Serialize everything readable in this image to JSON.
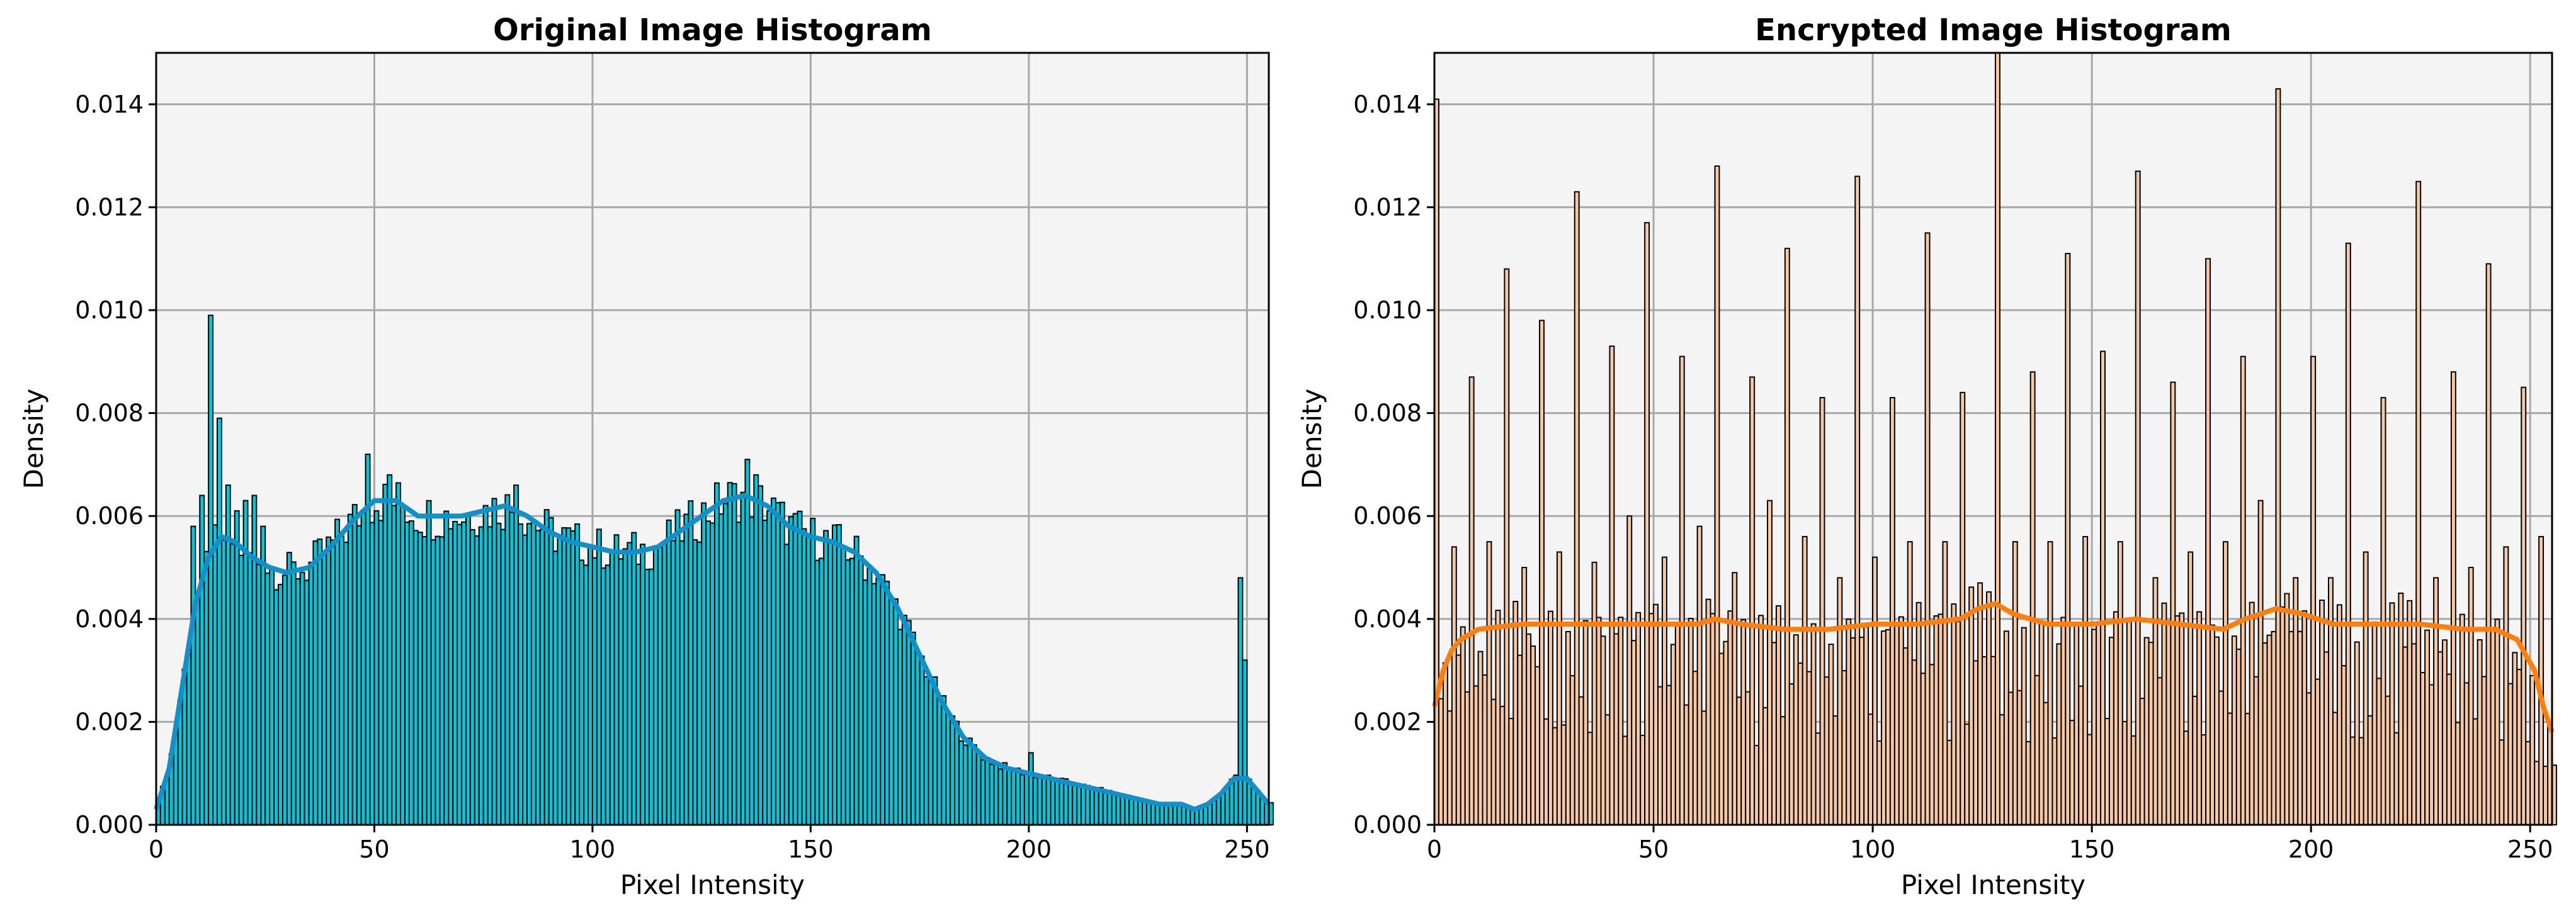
{
  "chart_data": [
    {
      "type": "bar",
      "title": "Original Image Histogram",
      "xlabel": "Pixel Intensity",
      "ylabel": "Density",
      "xlim": [
        0,
        255
      ],
      "ylim": [
        0,
        0.015
      ],
      "xticks": [
        "0",
        "50",
        "100",
        "150",
        "200",
        "250"
      ],
      "yticks": [
        "0.000",
        "0.002",
        "0.004",
        "0.006",
        "0.008",
        "0.010",
        "0.012",
        "0.014"
      ],
      "grid": true,
      "bar_color": "#00c8dc",
      "kde_color": "#1291c8",
      "kde_x": [
        0,
        3,
        6,
        9,
        12,
        15,
        18,
        22,
        26,
        30,
        35,
        40,
        45,
        50,
        55,
        60,
        65,
        70,
        75,
        80,
        85,
        90,
        95,
        100,
        105,
        110,
        115,
        120,
        125,
        130,
        135,
        140,
        145,
        150,
        155,
        160,
        165,
        170,
        175,
        180,
        185,
        190,
        195,
        200,
        205,
        210,
        215,
        220,
        225,
        230,
        235,
        238,
        241,
        244,
        247,
        250,
        253,
        255
      ],
      "kde_y": [
        0.0003,
        0.0011,
        0.0027,
        0.0043,
        0.0052,
        0.0056,
        0.0055,
        0.0052,
        0.005,
        0.0049,
        0.005,
        0.0054,
        0.0059,
        0.0063,
        0.0063,
        0.006,
        0.006,
        0.006,
        0.0061,
        0.0062,
        0.006,
        0.0057,
        0.0055,
        0.0054,
        0.0053,
        0.0053,
        0.0054,
        0.0057,
        0.006,
        0.0063,
        0.0064,
        0.0062,
        0.0058,
        0.0056,
        0.0055,
        0.0053,
        0.0049,
        0.0042,
        0.0033,
        0.0024,
        0.0017,
        0.0013,
        0.0011,
        0.001,
        0.0009,
        0.0008,
        0.0007,
        0.0006,
        0.0005,
        0.0004,
        0.0004,
        0.0003,
        0.0004,
        0.0006,
        0.0009,
        0.0009,
        0.0006,
        0.0004
      ],
      "spikes": [
        [
          8,
          0.0058
        ],
        [
          10,
          0.0064
        ],
        [
          12,
          0.0099
        ],
        [
          14,
          0.0079
        ],
        [
          16,
          0.0066
        ],
        [
          18,
          0.0061
        ],
        [
          20,
          0.0063
        ],
        [
          22,
          0.0064
        ],
        [
          24,
          0.0058
        ],
        [
          48,
          0.0072
        ],
        [
          53,
          0.0068
        ],
        [
          82,
          0.0066
        ],
        [
          135,
          0.0071
        ],
        [
          137,
          0.0068
        ],
        [
          200,
          0.0014
        ],
        [
          248,
          0.0048
        ],
        [
          249,
          0.0032
        ]
      ]
    },
    {
      "type": "bar",
      "title": "Encrypted Image Histogram",
      "xlabel": "Pixel Intensity",
      "ylabel": "Density",
      "xlim": [
        0,
        255
      ],
      "ylim": [
        0,
        0.015
      ],
      "xticks": [
        "0",
        "50",
        "100",
        "150",
        "200",
        "250"
      ],
      "yticks": [
        "0.000",
        "0.002",
        "0.004",
        "0.006",
        "0.008",
        "0.010",
        "0.012",
        "0.014"
      ],
      "grid": true,
      "bar_color": "#f6c8a4",
      "kde_color": "#ff7f0e",
      "kde_x": [
        0,
        2,
        4,
        6,
        8,
        10,
        20,
        30,
        40,
        50,
        60,
        64,
        70,
        80,
        90,
        100,
        110,
        120,
        124,
        128,
        132,
        140,
        150,
        160,
        170,
        180,
        185,
        192,
        198,
        205,
        215,
        225,
        235,
        242,
        247,
        251,
        253,
        255
      ],
      "kde_y": [
        0.0023,
        0.003,
        0.0034,
        0.0036,
        0.0037,
        0.0038,
        0.0039,
        0.0039,
        0.0039,
        0.0039,
        0.0039,
        0.004,
        0.0039,
        0.0038,
        0.0038,
        0.0039,
        0.0039,
        0.004,
        0.0042,
        0.0043,
        0.0041,
        0.0039,
        0.0039,
        0.004,
        0.0039,
        0.0038,
        0.004,
        0.0042,
        0.0041,
        0.0039,
        0.0039,
        0.0039,
        0.0038,
        0.0038,
        0.0036,
        0.003,
        0.0023,
        0.0018
      ],
      "spikes": [
        [
          0,
          0.0141
        ],
        [
          4,
          0.0054
        ],
        [
          8,
          0.0087
        ],
        [
          12,
          0.0055
        ],
        [
          16,
          0.0108
        ],
        [
          20,
          0.005
        ],
        [
          24,
          0.0098
        ],
        [
          28,
          0.0053
        ],
        [
          32,
          0.0123
        ],
        [
          36,
          0.0051
        ],
        [
          40,
          0.0093
        ],
        [
          44,
          0.006
        ],
        [
          48,
          0.0117
        ],
        [
          52,
          0.0052
        ],
        [
          56,
          0.0091
        ],
        [
          60,
          0.0058
        ],
        [
          64,
          0.0128
        ],
        [
          68,
          0.0049
        ],
        [
          72,
          0.0087
        ],
        [
          76,
          0.0063
        ],
        [
          80,
          0.0112
        ],
        [
          84,
          0.0056
        ],
        [
          88,
          0.0083
        ],
        [
          92,
          0.0048
        ],
        [
          96,
          0.0126
        ],
        [
          100,
          0.0052
        ],
        [
          104,
          0.0083
        ],
        [
          108,
          0.0055
        ],
        [
          112,
          0.0115
        ],
        [
          116,
          0.0055
        ],
        [
          120,
          0.0084
        ],
        [
          124,
          0.0047
        ],
        [
          128,
          0.0151
        ],
        [
          132,
          0.0055
        ],
        [
          136,
          0.0088
        ],
        [
          140,
          0.0055
        ],
        [
          144,
          0.0111
        ],
        [
          148,
          0.0056
        ],
        [
          152,
          0.0092
        ],
        [
          156,
          0.0055
        ],
        [
          160,
          0.0127
        ],
        [
          164,
          0.0048
        ],
        [
          168,
          0.0086
        ],
        [
          172,
          0.0053
        ],
        [
          176,
          0.011
        ],
        [
          180,
          0.0055
        ],
        [
          184,
          0.0091
        ],
        [
          188,
          0.0063
        ],
        [
          192,
          0.0143
        ],
        [
          196,
          0.0048
        ],
        [
          200,
          0.0091
        ],
        [
          204,
          0.0048
        ],
        [
          208,
          0.0113
        ],
        [
          212,
          0.0053
        ],
        [
          216,
          0.0083
        ],
        [
          220,
          0.0045
        ],
        [
          224,
          0.0125
        ],
        [
          228,
          0.0048
        ],
        [
          232,
          0.0088
        ],
        [
          236,
          0.005
        ],
        [
          240,
          0.0109
        ],
        [
          244,
          0.0054
        ],
        [
          248,
          0.0085
        ],
        [
          252,
          0.0056
        ]
      ]
    }
  ]
}
